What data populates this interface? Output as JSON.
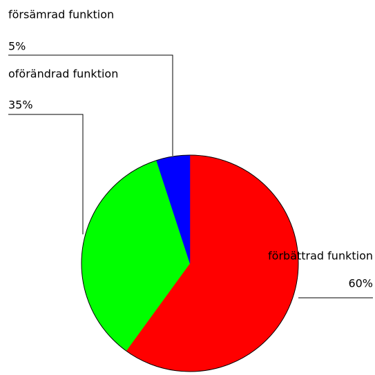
{
  "chart_data": {
    "type": "pie",
    "categories": [
      "förbättrad funktion",
      "oförändrad funktion",
      "försämrad funktion"
    ],
    "values": [
      60,
      35,
      5
    ],
    "value_labels": [
      "60%",
      "35%",
      "5%"
    ],
    "colors": [
      "#ff0000",
      "#00ff00",
      "#0000ff"
    ]
  }
}
